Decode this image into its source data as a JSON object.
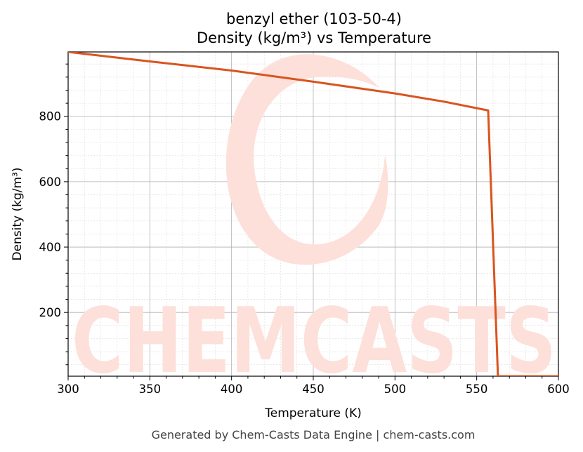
{
  "chart_data": {
    "type": "line",
    "title": "benzyl ether (103-50-4)",
    "subtitle": "Density (kg/m³) vs Temperature",
    "xlabel": "Temperature (K)",
    "ylabel": "Density (kg/m³)",
    "xlim": [
      300,
      600
    ],
    "ylim": [
      5,
      997
    ],
    "x_ticks": [
      300,
      350,
      400,
      450,
      500,
      550,
      600
    ],
    "y_ticks": [
      200,
      400,
      600,
      800
    ],
    "grid": true,
    "series": [
      {
        "color": "#d9541e",
        "points": [
          [
            300,
            997
          ],
          [
            350,
            968
          ],
          [
            400,
            940
          ],
          [
            450,
            906
          ],
          [
            500,
            870
          ],
          [
            530,
            845
          ],
          [
            557,
            818
          ],
          [
            563,
            5
          ],
          [
            600,
            5
          ]
        ]
      }
    ]
  },
  "footer": "Generated by Chem-Casts Data Engine | chem-casts.com",
  "watermark": "CHEMCASTS"
}
